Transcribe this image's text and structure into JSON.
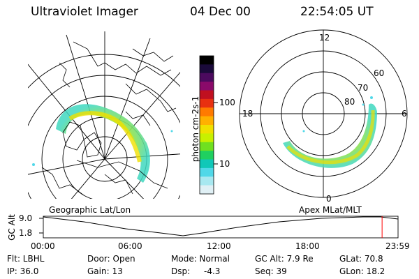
{
  "header": {
    "title": "Ultraviolet Imager",
    "date": "04 Dec 00",
    "time": "22:54:05 UT"
  },
  "panels": {
    "geographic_label": "Geographic Lat/Lon",
    "apex_label": "Apex  MLat/MLT"
  },
  "polar_plot": {
    "lat_labels": [
      "80",
      "70",
      "60"
    ],
    "mlt_labels": [
      "12",
      "18",
      "6",
      "0"
    ]
  },
  "colorbar": {
    "axis_label": "photon cm-2s-1",
    "ticks": [
      "100",
      "10"
    ],
    "colors": [
      "#000000",
      "#1a0a3a",
      "#4b0a5e",
      "#8a0a6a",
      "#c01020",
      "#e83010",
      "#ff7a00",
      "#ffb000",
      "#f0e000",
      "#c8f000",
      "#70e020",
      "#20d060",
      "#10c8b8",
      "#50d8e8",
      "#a8e8f0",
      "#e0f0f5"
    ]
  },
  "altitude_plot": {
    "ylabel": "GC Alt",
    "y_ticks": [
      "9.0",
      "1.8"
    ],
    "x_ticks": [
      "00:00",
      "06:00",
      "12:00",
      "18:00",
      "23:59"
    ],
    "marker_color": "#ff0000",
    "current_time_fraction": 0.955
  },
  "info": {
    "flt": "Flt: LBHL",
    "ip": "IP: 36.0",
    "door": "Door: Open",
    "gain": "Gain: 13",
    "mode": "Mode: Normal",
    "dsp_label": "Dsp:",
    "dsp_value": "-4.3",
    "gc_alt": "GC Alt: 7.9 Re",
    "seq": "Seq: 39",
    "glat": "GLat:  70.8",
    "glon": "GLon:  18.2"
  }
}
